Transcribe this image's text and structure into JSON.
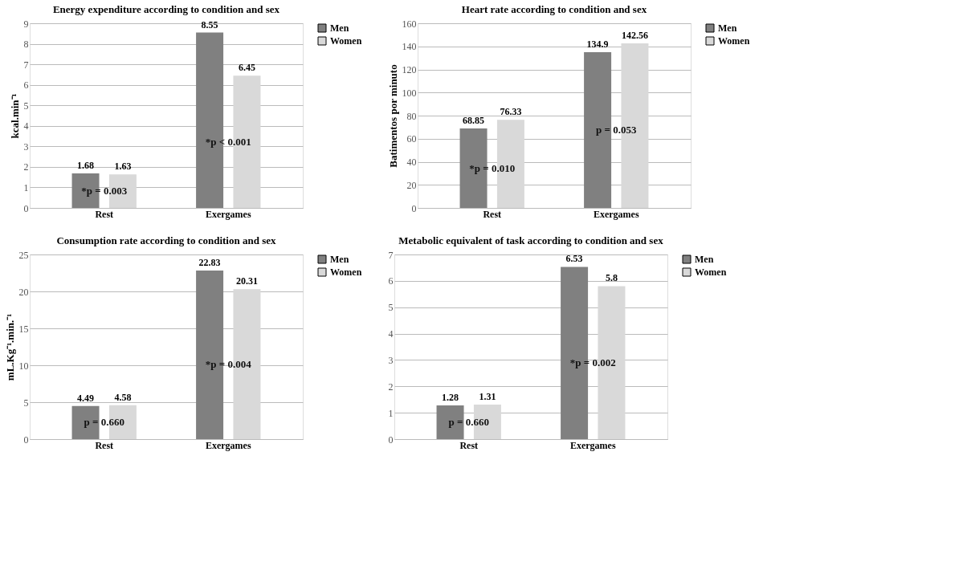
{
  "chart_data": [
    {
      "type": "bar",
      "title": "Energy expenditure according to condition and sex",
      "ylabel": "kcal.min⁻¹",
      "categories": [
        "Rest",
        "Exergames"
      ],
      "series": [
        {
          "name": "Men",
          "color": "#808080",
          "values": [
            1.68,
            8.55
          ]
        },
        {
          "name": "Women",
          "color": "#d9d9d9",
          "values": [
            1.63,
            6.45
          ]
        }
      ],
      "ylim": [
        0,
        9
      ],
      "yticks": [
        0,
        1,
        2,
        3,
        4,
        5,
        6,
        7,
        8,
        9
      ],
      "grid": "y",
      "legend": "right",
      "data_labels": true,
      "annotations": [
        "*p = 0.003",
        "*p < 0.001"
      ]
    },
    {
      "type": "bar",
      "title": "Heart rate according to condition and sex",
      "ylabel": "Batimentos por minuto",
      "categories": [
        "Rest",
        "Exergames"
      ],
      "series": [
        {
          "name": "Men",
          "color": "#808080",
          "values": [
            68.85,
            134.9
          ]
        },
        {
          "name": "Women",
          "color": "#d9d9d9",
          "values": [
            76.33,
            142.56
          ]
        }
      ],
      "ylim": [
        0,
        160
      ],
      "yticks": [
        0,
        20,
        40,
        60,
        80,
        100,
        120,
        140,
        160
      ],
      "grid": "y",
      "legend": "right",
      "data_labels": true,
      "annotations": [
        "*p = 0.010",
        "p = 0.053"
      ]
    },
    {
      "type": "bar",
      "title": "Consumption rate according to condition and sex",
      "ylabel": "mL.Kg⁻¹.min.⁻¹",
      "categories": [
        "Rest",
        "Exergames"
      ],
      "series": [
        {
          "name": "Men",
          "color": "#808080",
          "values": [
            4.49,
            22.83
          ]
        },
        {
          "name": "Women",
          "color": "#d9d9d9",
          "values": [
            4.58,
            20.31
          ]
        }
      ],
      "ylim": [
        0,
        25
      ],
      "yticks": [
        0,
        5,
        10,
        15,
        20,
        25
      ],
      "grid": "y",
      "legend": "right",
      "data_labels": true,
      "annotations": [
        "p = 0.660",
        "*p = 0.004"
      ]
    },
    {
      "type": "bar",
      "title": "Metabolic equivalent of task according to condition and sex",
      "categories": [
        "Rest",
        "Exergames"
      ],
      "series": [
        {
          "name": "Men",
          "color": "#808080",
          "values": [
            1.28,
            6.53
          ]
        },
        {
          "name": "Women",
          "color": "#d9d9d9",
          "values": [
            1.31,
            5.8
          ]
        }
      ],
      "ylim": [
        0,
        7
      ],
      "yticks": [
        0,
        1,
        2,
        3,
        4,
        5,
        6,
        7
      ],
      "grid": "y",
      "legend": "right",
      "data_labels": true,
      "annotations": [
        "p = 0.660",
        "*p = 0.002"
      ]
    }
  ]
}
